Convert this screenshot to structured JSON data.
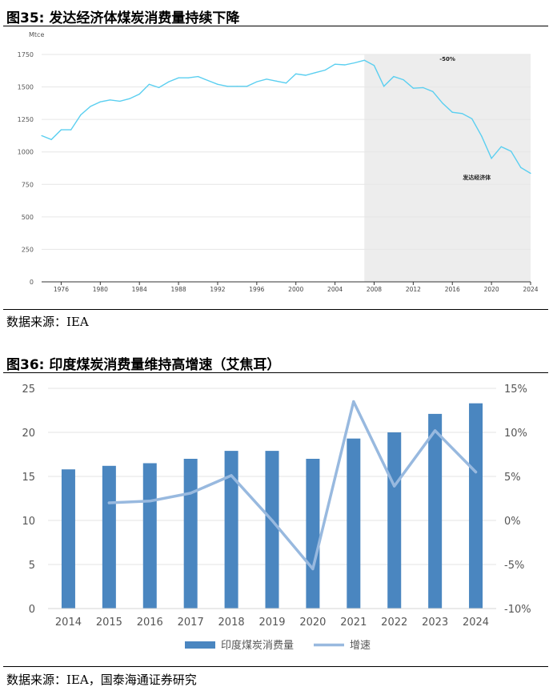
{
  "figures": [
    {
      "title": "图35:  发达经济体煤炭消费量持续下降",
      "source": "数据来源：IEA"
    },
    {
      "title": "图36:  印度煤炭消费量维持高增速（艾焦耳）",
      "source": "数据来源：IEA，国泰海通证券研究"
    }
  ],
  "chart_data": [
    {
      "type": "line",
      "title": "",
      "ylabel": "Mtce",
      "xlabel": "",
      "ylim": [
        0,
        1750
      ],
      "xlim": [
        1974,
        2024
      ],
      "yticks": [
        0,
        250,
        500,
        750,
        1000,
        1250,
        1500,
        1750
      ],
      "xticks": [
        1976,
        1980,
        1984,
        1988,
        1992,
        1996,
        2000,
        2004,
        2008,
        2012,
        2016,
        2020,
        2024
      ],
      "grid": true,
      "line_color": "#5BCFF0",
      "shade": {
        "from": 2007,
        "to": 2024,
        "color": "#EDEDED"
      },
      "annotations": [
        {
          "text": "-50%",
          "x": 2015.5,
          "y": 1700
        },
        {
          "text": "发达经济体",
          "x": 2018.5,
          "y": 790
        }
      ],
      "series": [
        {
          "x": [
            1974,
            1975,
            1976,
            1977,
            1978,
            1979,
            1980,
            1981,
            1982,
            1983,
            1984,
            1985,
            1986,
            1987,
            1988,
            1989,
            1990,
            1991,
            1992,
            1993,
            1994,
            1995,
            1996,
            1997,
            1998,
            1999,
            2000,
            2001,
            2002,
            2003,
            2004,
            2005,
            2006,
            2007,
            2008,
            2009,
            2010,
            2011,
            2012,
            2013,
            2014,
            2015,
            2016,
            2017,
            2018,
            2019,
            2020,
            2021,
            2022,
            2023,
            2024
          ],
          "values": [
            1125,
            1095,
            1170,
            1170,
            1285,
            1350,
            1385,
            1400,
            1390,
            1410,
            1445,
            1520,
            1495,
            1540,
            1570,
            1570,
            1580,
            1550,
            1520,
            1505,
            1505,
            1505,
            1540,
            1560,
            1545,
            1530,
            1600,
            1590,
            1610,
            1630,
            1675,
            1670,
            1685,
            1705,
            1665,
            1505,
            1580,
            1555,
            1490,
            1495,
            1465,
            1375,
            1305,
            1295,
            1255,
            1120,
            950,
            1040,
            1005,
            880,
            835
          ]
        }
      ]
    },
    {
      "type": "bar",
      "title": "",
      "xlabel": "",
      "ylabel": "",
      "categories": [
        "2014",
        "2015",
        "2016",
        "2017",
        "2018",
        "2019",
        "2020",
        "2021",
        "2022",
        "2023",
        "2024"
      ],
      "ylim": [
        0,
        25
      ],
      "yticks": [
        0,
        5,
        10,
        15,
        20,
        25
      ],
      "y2lim": [
        -10,
        15
      ],
      "y2ticks": [
        "-10%",
        "-5%",
        "0%",
        "5%",
        "10%",
        "15%"
      ],
      "legend_position": "bottom",
      "series": [
        {
          "name": "印度煤炭消费量",
          "type": "bar",
          "axis": "left",
          "color": "#4A86C0",
          "values": [
            15.8,
            16.2,
            16.5,
            17.0,
            17.9,
            17.9,
            17.0,
            19.3,
            20.0,
            22.1,
            23.3
          ]
        },
        {
          "name": "增速",
          "type": "line",
          "axis": "right",
          "unit": "%",
          "color": "#98B9DF",
          "x": [
            "2015",
            "2016",
            "2017",
            "2018",
            "2019",
            "2020",
            "2021",
            "2022",
            "2023",
            "2024"
          ],
          "values": [
            2.0,
            2.2,
            3.1,
            5.1,
            0.0,
            -5.5,
            13.5,
            3.9,
            10.2,
            5.5
          ]
        }
      ]
    }
  ]
}
